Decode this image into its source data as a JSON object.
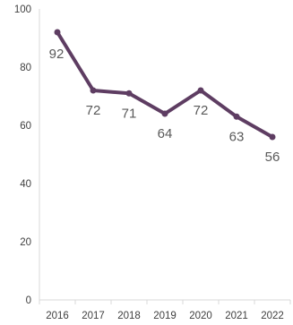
{
  "chart_data": {
    "type": "line",
    "title": "",
    "xlabel": "",
    "ylabel": "",
    "categories": [
      "2016",
      "2017",
      "2018",
      "2019",
      "2020",
      "2021",
      "2022"
    ],
    "series": [
      {
        "values": [
          92,
          72,
          71,
          64,
          72,
          63,
          56
        ],
        "labels": [
          "92",
          "72",
          "71",
          "64",
          "72",
          "63",
          "56"
        ],
        "color": "#5e3d62"
      }
    ],
    "ylim": [
      0,
      100
    ],
    "yticks": [
      0,
      20,
      40,
      60,
      80,
      100
    ],
    "grid": false,
    "legend": "none",
    "axis_color": "#d9d9d9",
    "text_color": "#404040"
  }
}
